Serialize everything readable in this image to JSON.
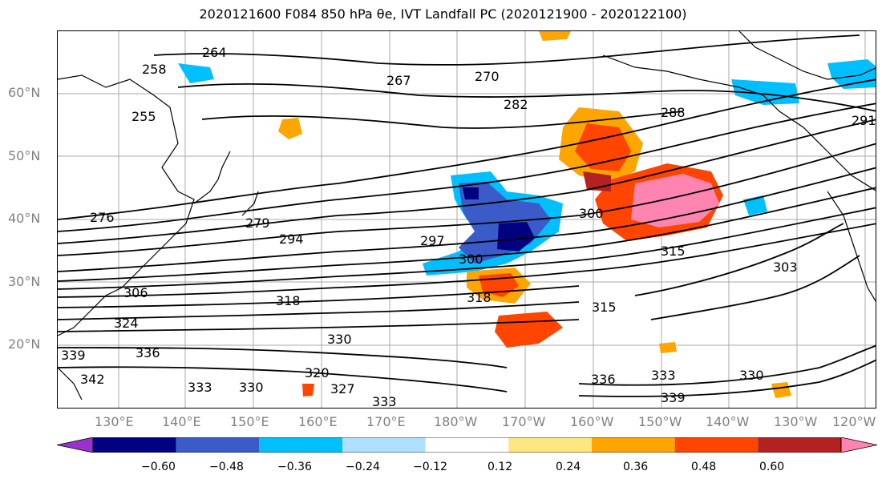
{
  "title": "2020121600 F084 850 hPa θe, IVT Landfall PC (2020121900 - 2020122100)",
  "lat_labels": [
    "60°N",
    "50°N",
    "40°N",
    "30°N",
    "20°N"
  ],
  "lon_labels": [
    "130°E",
    "140°E",
    "150°E",
    "160°E",
    "170°E",
    "180°W",
    "170°W",
    "160°W",
    "150°W",
    "140°W",
    "130°W",
    "120°W"
  ],
  "contour_labels": [
    "264",
    "258",
    "267",
    "270",
    "282",
    "288",
    "291",
    "255",
    "276",
    "279",
    "294",
    "297",
    "300",
    "315",
    "303",
    "306",
    "318",
    "324",
    "339",
    "336",
    "342",
    "333",
    "330",
    "327",
    "320"
  ],
  "colorbar": {
    "colors": [
      "#9932cc",
      "#000080",
      "#3a5bc8",
      "#00bfff",
      "#b0e0ff",
      "#ffffff",
      "#ffe680",
      "#ffa500",
      "#ff4500",
      "#b22222",
      "#ff85b0"
    ],
    "tick_labels": [
      "−0.60",
      "−0.48",
      "−0.36",
      "−0.24",
      "−0.12",
      "0.12",
      "0.24",
      "0.36",
      "0.48",
      "0.60"
    ]
  }
}
